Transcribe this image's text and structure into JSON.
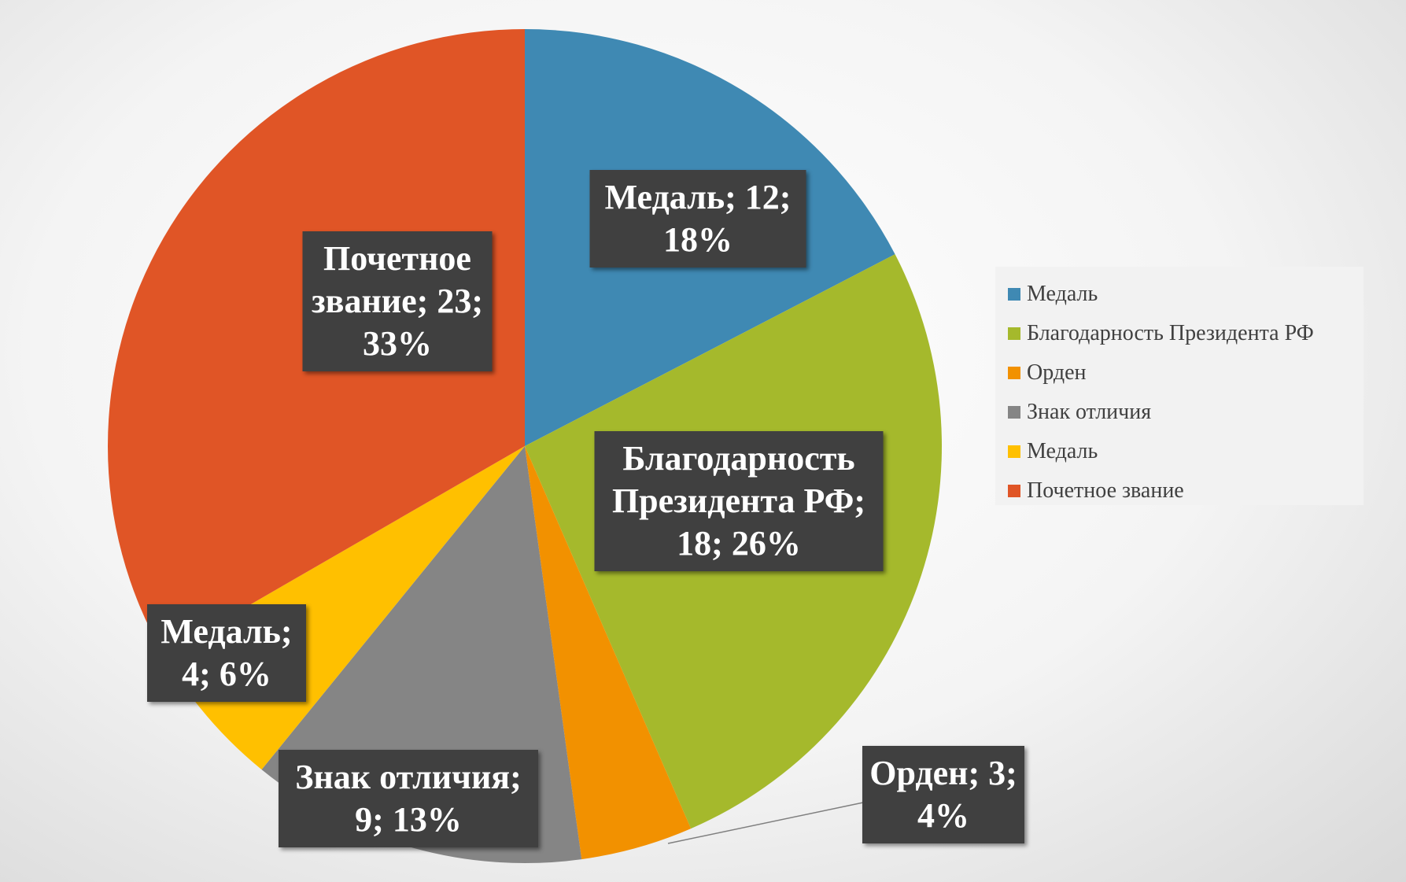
{
  "chart_data": {
    "type": "pie",
    "categories": [
      "Медаль",
      "Благодарность Президента РФ",
      "Орден",
      "Знак отличия",
      "Медаль",
      "Почетное звание"
    ],
    "values": [
      12,
      18,
      3,
      9,
      4,
      23
    ],
    "value_labels": [
      "Медаль; 12; 18%",
      "Благодарность Президента РФ; 18; 26%",
      "Орден; 3; 4%",
      "Знак отличия; 9; 13%",
      "Медаль; 4; 6%",
      "Почетное звание; 23; 33%"
    ],
    "colors": [
      "#3f89b3",
      "#a5b92c",
      "#f29100",
      "#858585",
      "#ffc000",
      "#e05526"
    ],
    "legend": "right"
  }
}
